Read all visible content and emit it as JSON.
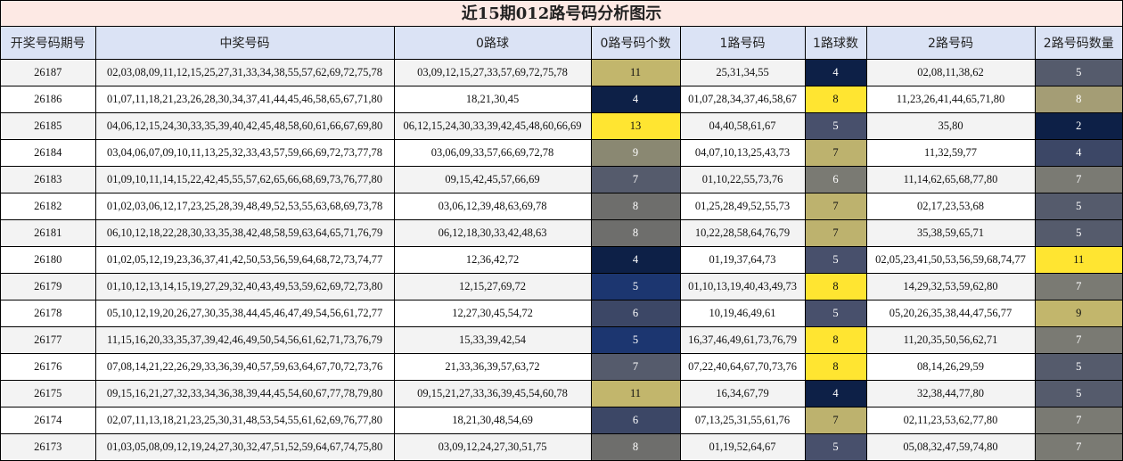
{
  "title": "近15期012路号码分析图示",
  "chart_data": {
    "type": "table",
    "columns": [
      "开奖号码期号",
      "中奖号码",
      "0路球",
      "0路号码个数",
      "1路号码",
      "1路球数",
      "2路号码",
      "2路号码数量"
    ],
    "rows": [
      {
        "period": "26187",
        "numbers": "02,03,08,09,11,12,15,25,27,31,33,34,38,55,57,62,69,72,75,78",
        "r0": "03,09,12,15,27,33,57,69,72,75,78",
        "c0": 11,
        "r1": "25,31,34,55",
        "c1": 4,
        "r2": "02,08,11,38,62",
        "c2": 5
      },
      {
        "period": "26186",
        "numbers": "01,07,11,18,21,23,26,28,30,34,37,41,44,45,46,58,65,67,71,80",
        "r0": "18,21,30,45",
        "c0": 4,
        "r1": "01,07,28,34,37,46,58,67",
        "c1": 8,
        "r2": "11,23,26,41,44,65,71,80",
        "c2": 8
      },
      {
        "period": "26185",
        "numbers": "04,06,12,15,24,30,33,35,39,40,42,45,48,58,60,61,66,67,69,80",
        "r0": "06,12,15,24,30,33,39,42,45,48,60,66,69",
        "c0": 13,
        "r1": "04,40,58,61,67",
        "c1": 5,
        "r2": "35,80",
        "c2": 2
      },
      {
        "period": "26184",
        "numbers": "03,04,06,07,09,10,11,13,25,32,33,43,57,59,66,69,72,73,77,78",
        "r0": "03,06,09,33,57,66,69,72,78",
        "c0": 9,
        "r1": "04,07,10,13,25,43,73",
        "c1": 7,
        "r2": "11,32,59,77",
        "c2": 4
      },
      {
        "period": "26183",
        "numbers": "01,09,10,11,14,15,22,42,45,55,57,62,65,66,68,69,73,76,77,80",
        "r0": "09,15,42,45,57,66,69",
        "c0": 7,
        "r1": "01,10,22,55,73,76",
        "c1": 6,
        "r2": "11,14,62,65,68,77,80",
        "c2": 7
      },
      {
        "period": "26182",
        "numbers": "01,02,03,06,12,17,23,25,28,39,48,49,52,53,55,63,68,69,73,78",
        "r0": "03,06,12,39,48,63,69,78",
        "c0": 8,
        "r1": "01,25,28,49,52,55,73",
        "c1": 7,
        "r2": "02,17,23,53,68",
        "c2": 5
      },
      {
        "period": "26181",
        "numbers": "06,10,12,18,22,28,30,33,35,38,42,48,58,59,63,64,65,71,76,79",
        "r0": "06,12,18,30,33,42,48,63",
        "c0": 8,
        "r1": "10,22,28,58,64,76,79",
        "c1": 7,
        "r2": "35,38,59,65,71",
        "c2": 5
      },
      {
        "period": "26180",
        "numbers": "01,02,05,12,19,23,36,37,41,42,50,53,56,59,64,68,72,73,74,77",
        "r0": "12,36,42,72",
        "c0": 4,
        "r1": "01,19,37,64,73",
        "c1": 5,
        "r2": "02,05,23,41,50,53,56,59,68,74,77",
        "c2": 11
      },
      {
        "period": "26179",
        "numbers": "01,10,12,13,14,15,19,27,29,32,40,43,49,53,59,62,69,72,73,80",
        "r0": "12,15,27,69,72",
        "c0": 5,
        "r1": "01,10,13,19,40,43,49,73",
        "c1": 8,
        "r2": "14,29,32,53,59,62,80",
        "c2": 7
      },
      {
        "period": "26178",
        "numbers": "05,10,12,19,20,26,27,30,35,38,44,45,46,47,49,54,56,61,72,77",
        "r0": "12,27,30,45,54,72",
        "c0": 6,
        "r1": "10,19,46,49,61",
        "c1": 5,
        "r2": "05,20,26,35,38,44,47,56,77",
        "c2": 9
      },
      {
        "period": "26177",
        "numbers": "11,15,16,20,33,35,37,39,42,46,49,50,54,56,61,62,71,73,76,79",
        "r0": "15,33,39,42,54",
        "c0": 5,
        "r1": "16,37,46,49,61,73,76,79",
        "c1": 8,
        "r2": "11,20,35,50,56,62,71",
        "c2": 7
      },
      {
        "period": "26176",
        "numbers": "07,08,14,21,22,26,29,33,36,39,40,57,59,63,64,67,70,72,73,76",
        "r0": "21,33,36,39,57,63,72",
        "c0": 7,
        "r1": "07,22,40,64,67,70,73,76",
        "c1": 8,
        "r2": "08,14,26,29,59",
        "c2": 5
      },
      {
        "period": "26175",
        "numbers": "09,15,16,21,27,32,33,34,36,38,39,44,45,54,60,67,77,78,79,80",
        "r0": "09,15,21,27,33,36,39,45,54,60,78",
        "c0": 11,
        "r1": "16,34,67,79",
        "c1": 4,
        "r2": "32,38,44,77,80",
        "c2": 5
      },
      {
        "period": "26174",
        "numbers": "02,07,11,13,18,21,23,25,30,31,48,53,54,55,61,62,69,76,77,80",
        "r0": "18,21,30,48,54,69",
        "c0": 6,
        "r1": "07,13,25,31,55,61,76",
        "c1": 7,
        "r2": "02,11,23,53,62,77,80",
        "c2": 7
      },
      {
        "period": "26173",
        "numbers": "01,03,05,08,09,12,19,24,27,30,32,47,51,52,59,64,67,74,75,80",
        "r0": "03,09,12,24,27,30,51,75",
        "c0": 8,
        "r1": "01,19,52,64,67",
        "c1": 5,
        "r2": "05,08,32,47,59,74,80",
        "c2": 7
      }
    ]
  },
  "colors": {
    "2": "#0d2047",
    "4": "#0d2047",
    "5": "#48506c",
    "6": "#7a7a73",
    "7": "#bdb26e",
    "8": "#ffe531",
    "9": "#c2b66c",
    "11": "#ffe531",
    "13": "#ffe531"
  },
  "count_colors": {
    "c0": {
      "4": "#0d2047",
      "5": "#1c3670",
      "6": "#3c4766",
      "7": "#555b6c",
      "8": "#6e6e6c",
      "9": "#8a8872",
      "11": "#c2b66c",
      "13": "#ffe531"
    },
    "c1": {
      "4": "#0d2047",
      "5": "#48506c",
      "6": "#7a7a73",
      "7": "#bdb26e",
      "8": "#ffe531"
    },
    "c2": {
      "2": "#0d2047",
      "4": "#3c4766",
      "5": "#555b6c",
      "7": "#7a7a73",
      "8": "#a49d75",
      "9": "#c2b66c",
      "11": "#ffe531"
    }
  }
}
